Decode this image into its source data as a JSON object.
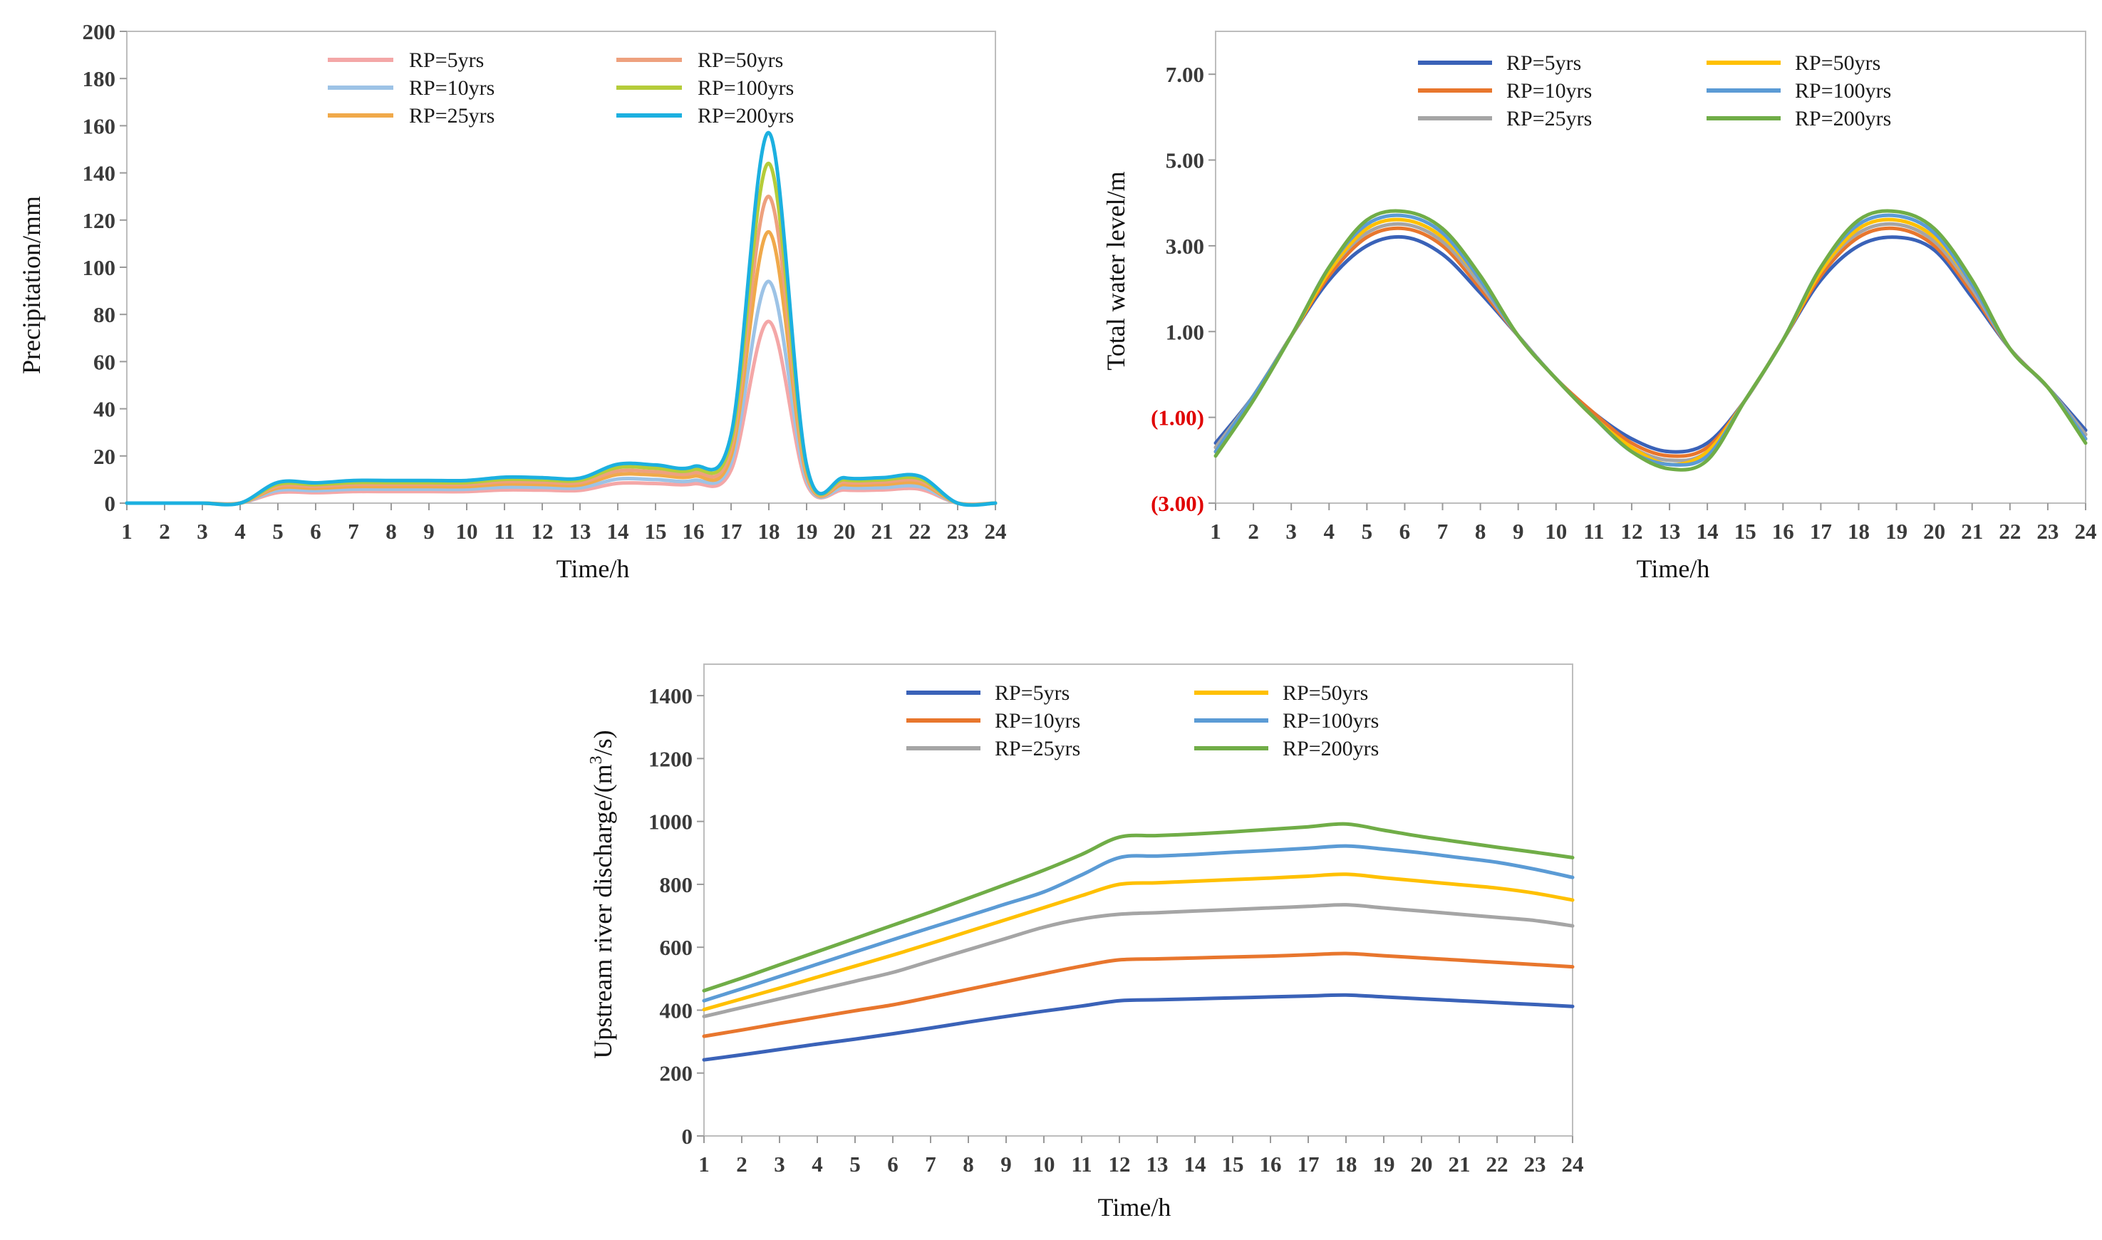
{
  "figure": {
    "charts": [
      "precip",
      "water",
      "discharge"
    ]
  },
  "chart_data": [
    {
      "id": "precip",
      "type": "line",
      "title": "",
      "xlabel": "Time/h",
      "ylabel": "Precipitation/mm",
      "x": [
        1,
        2,
        3,
        4,
        5,
        6,
        7,
        8,
        9,
        10,
        11,
        12,
        13,
        14,
        15,
        16,
        17,
        18,
        19,
        20,
        21,
        22,
        23,
        24
      ],
      "xlim": [
        1,
        24
      ],
      "ylim": [
        0,
        200
      ],
      "yticks": [
        0,
        20,
        40,
        60,
        80,
        100,
        120,
        140,
        160,
        180,
        200
      ],
      "ytick_labels": [
        "0",
        "20",
        "40",
        "60",
        "80",
        "100",
        "120",
        "140",
        "160",
        "180",
        "200"
      ],
      "grid": false,
      "legend_position": "top-center",
      "series": [
        {
          "name": "RP=5yrs",
          "color": "#f4a7a7",
          "values": [
            0,
            0,
            0,
            0,
            4.5,
            4.4,
            4.9,
            4.9,
            4.9,
            4.9,
            5.6,
            5.5,
            5.4,
            8.4,
            8.3,
            8.2,
            14,
            77,
            8.2,
            5.6,
            5.6,
            5.9,
            0,
            0
          ]
        },
        {
          "name": "RP=10yrs",
          "color": "#9dc3e6",
          "values": [
            0,
            0,
            0,
            0,
            5.4,
            5.3,
            5.9,
            5.9,
            5.9,
            5.9,
            6.8,
            6.7,
            6.5,
            10.2,
            10,
            9.6,
            17,
            94,
            9.8,
            6.6,
            6.6,
            7,
            0,
            0
          ]
        },
        {
          "name": "RP=25yrs",
          "color": "#f0a94a",
          "values": [
            0,
            0,
            0,
            0,
            6.4,
            6.3,
            7,
            7,
            7,
            7,
            8.1,
            7.9,
            7.7,
            12.1,
            11.9,
            11.4,
            20,
            115,
            11.8,
            7.9,
            7.9,
            8.3,
            0,
            0
          ]
        },
        {
          "name": "RP=50yrs",
          "color": "#eea17e",
          "values": [
            0,
            0,
            0,
            0,
            7.2,
            7.1,
            7.9,
            7.9,
            7.9,
            7.9,
            9.1,
            8.9,
            8.7,
            13.6,
            13.3,
            12.8,
            23,
            130,
            13.3,
            8.9,
            8.9,
            9.4,
            0,
            0
          ]
        },
        {
          "name": "RP=100yrs",
          "color": "#b5cc3a",
          "values": [
            0,
            0,
            0,
            0,
            8,
            7.9,
            8.7,
            8.7,
            8.7,
            8.7,
            10.1,
            9.9,
            9.7,
            15.1,
            14.8,
            14.2,
            26,
            144,
            14.8,
            9.9,
            9.9,
            10.4,
            0,
            0
          ]
        },
        {
          "name": "RP=200yrs",
          "color": "#1cb0e0",
          "values": [
            0,
            0,
            0,
            0,
            8.8,
            8.6,
            9.6,
            9.6,
            9.6,
            9.6,
            11,
            10.8,
            10.6,
            16.5,
            16.2,
            15.5,
            29,
            157,
            16.2,
            10.8,
            10.8,
            11.4,
            0,
            0
          ]
        }
      ]
    },
    {
      "id": "water",
      "type": "line",
      "title": "",
      "xlabel": "Time/h",
      "ylabel": "Total water level/m",
      "x": [
        1,
        2,
        3,
        4,
        5,
        6,
        7,
        8,
        9,
        10,
        11,
        12,
        13,
        14,
        15,
        16,
        17,
        18,
        19,
        20,
        21,
        22,
        23,
        24
      ],
      "xlim": [
        1,
        24
      ],
      "ylim": [
        -3,
        8
      ],
      "yticks": [
        -3,
        -1,
        1,
        3,
        5,
        7
      ],
      "ytick_labels": [
        "(3.00)",
        "(1.00)",
        "1.00",
        "3.00",
        "5.00",
        "7.00"
      ],
      "grid": false,
      "legend_position": "top-center",
      "series": [
        {
          "name": "RP=5yrs",
          "color": "#3a62b8",
          "values": [
            -1.6,
            -0.5,
            0.9,
            2.2,
            3.0,
            3.2,
            2.8,
            1.9,
            0.9,
            -0.1,
            -0.9,
            -1.5,
            -1.8,
            -1.6,
            -0.6,
            0.8,
            2.2,
            3.0,
            3.2,
            2.9,
            1.8,
            0.6,
            -0.3,
            -1.3
          ]
        },
        {
          "name": "RP=10yrs",
          "color": "#e8762d",
          "values": [
            -1.7,
            -0.5,
            0.9,
            2.3,
            3.2,
            3.4,
            3.0,
            2.0,
            0.9,
            -0.1,
            -0.9,
            -1.6,
            -1.9,
            -1.7,
            -0.6,
            0.8,
            2.3,
            3.2,
            3.4,
            3.0,
            1.9,
            0.6,
            -0.3,
            -1.4
          ]
        },
        {
          "name": "RP=25yrs",
          "color": "#a5a5a5",
          "values": [
            -1.7,
            -0.5,
            0.9,
            2.4,
            3.3,
            3.5,
            3.1,
            2.1,
            0.9,
            -0.1,
            -1.0,
            -1.7,
            -2.0,
            -1.8,
            -0.6,
            0.8,
            2.4,
            3.3,
            3.5,
            3.1,
            2.0,
            0.6,
            -0.3,
            -1.4
          ]
        },
        {
          "name": "RP=50yrs",
          "color": "#ffc000",
          "values": [
            -1.8,
            -0.5,
            0.9,
            2.4,
            3.4,
            3.6,
            3.2,
            2.2,
            0.9,
            -0.1,
            -1.0,
            -1.7,
            -2.1,
            -1.8,
            -0.6,
            0.8,
            2.4,
            3.4,
            3.6,
            3.2,
            2.1,
            0.6,
            -0.3,
            -1.5
          ]
        },
        {
          "name": "RP=100yrs",
          "color": "#5b9bd5",
          "values": [
            -1.8,
            -0.5,
            0.9,
            2.5,
            3.5,
            3.7,
            3.3,
            2.2,
            0.9,
            -0.1,
            -1.0,
            -1.8,
            -2.1,
            -1.9,
            -0.6,
            0.8,
            2.5,
            3.5,
            3.7,
            3.3,
            2.1,
            0.6,
            -0.3,
            -1.5
          ]
        },
        {
          "name": "RP=200yrs",
          "color": "#70ad47",
          "values": [
            -1.9,
            -0.6,
            0.9,
            2.5,
            3.6,
            3.8,
            3.4,
            2.3,
            0.9,
            -0.1,
            -1.0,
            -1.8,
            -2.2,
            -2.0,
            -0.6,
            0.8,
            2.5,
            3.6,
            3.8,
            3.4,
            2.2,
            0.6,
            -0.3,
            -1.6
          ]
        }
      ]
    },
    {
      "id": "discharge",
      "type": "line",
      "title": "",
      "xlabel": "Time/h",
      "ylabel_prefix": "Upstream river discharge/(m",
      "ylabel_sup": "3",
      "ylabel_suffix": "/s)",
      "x": [
        1,
        2,
        3,
        4,
        5,
        6,
        7,
        8,
        9,
        10,
        11,
        12,
        13,
        14,
        15,
        16,
        17,
        18,
        19,
        20,
        21,
        22,
        23,
        24
      ],
      "xlim": [
        1,
        24
      ],
      "ylim": [
        0,
        1500
      ],
      "yticks": [
        0,
        200,
        400,
        600,
        800,
        1000,
        1200,
        1400
      ],
      "ytick_labels": [
        "0",
        "200",
        "400",
        "600",
        "800",
        "1000",
        "1200",
        "1400"
      ],
      "grid": false,
      "legend_position": "top-center",
      "series": [
        {
          "name": "RP=5yrs",
          "color": "#3a62b8",
          "values": [
            242,
            258,
            275,
            292,
            308,
            325,
            343,
            362,
            380,
            397,
            413,
            430,
            433,
            436,
            439,
            442,
            445,
            448,
            442,
            436,
            430,
            424,
            418,
            412
          ]
        },
        {
          "name": "RP=10yrs",
          "color": "#e8762d",
          "values": [
            317,
            337,
            358,
            378,
            398,
            417,
            441,
            466,
            491,
            516,
            540,
            560,
            563,
            566,
            569,
            572,
            576,
            580,
            573,
            566,
            559,
            552,
            545,
            538
          ]
        },
        {
          "name": "RP=25yrs",
          "color": "#a5a5a5",
          "values": [
            380,
            408,
            436,
            464,
            492,
            520,
            556,
            592,
            628,
            664,
            690,
            705,
            710,
            715,
            720,
            725,
            730,
            735,
            725,
            715,
            705,
            695,
            685,
            668
          ]
        },
        {
          "name": "RP=50yrs",
          "color": "#ffc000",
          "values": [
            402,
            436,
            470,
            505,
            540,
            575,
            612,
            650,
            688,
            726,
            764,
            800,
            805,
            810,
            815,
            820,
            826,
            832,
            821,
            810,
            799,
            788,
            772,
            750
          ]
        },
        {
          "name": "RP=100yrs",
          "color": "#5b9bd5",
          "values": [
            430,
            468,
            507,
            546,
            585,
            624,
            662,
            700,
            738,
            776,
            830,
            885,
            890,
            895,
            902,
            908,
            915,
            922,
            912,
            900,
            885,
            870,
            848,
            822
          ]
        },
        {
          "name": "RP=200yrs",
          "color": "#70ad47",
          "values": [
            462,
            502,
            544,
            586,
            628,
            670,
            712,
            756,
            800,
            845,
            895,
            950,
            955,
            960,
            967,
            975,
            983,
            992,
            972,
            952,
            935,
            918,
            902,
            885
          ]
        }
      ]
    }
  ]
}
